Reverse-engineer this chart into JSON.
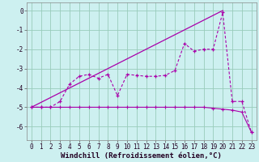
{
  "xlabel": "Windchill (Refroidissement éolien,°C)",
  "bg_color": "#cdf0f0",
  "grid_color": "#99ccbb",
  "line_color": "#aa00aa",
  "xlim": [
    -0.5,
    23.5
  ],
  "ylim": [
    -6.7,
    0.4
  ],
  "yticks": [
    0,
    -1,
    -2,
    -3,
    -4,
    -5,
    -6
  ],
  "xticks": [
    0,
    1,
    2,
    3,
    4,
    5,
    6,
    7,
    8,
    9,
    10,
    11,
    12,
    13,
    14,
    15,
    16,
    17,
    18,
    19,
    20,
    21,
    22,
    23
  ],
  "straight_line_x": [
    0,
    20
  ],
  "straight_line_y": [
    -5.0,
    0.0
  ],
  "flat_line_x": [
    0,
    1,
    2,
    3,
    4,
    5,
    6,
    7,
    8,
    9,
    10,
    11,
    12,
    13,
    14,
    15,
    16,
    17,
    18,
    19,
    20,
    21,
    22,
    23
  ],
  "flat_line_y": [
    -5.0,
    -5.0,
    -5.0,
    -5.0,
    -5.0,
    -5.0,
    -5.0,
    -5.0,
    -5.0,
    -5.0,
    -5.0,
    -5.0,
    -5.0,
    -5.0,
    -5.0,
    -5.0,
    -5.0,
    -5.0,
    -5.0,
    -5.05,
    -5.1,
    -5.15,
    -5.25,
    -6.3
  ],
  "jagged_x": [
    0,
    1,
    2,
    3,
    4,
    5,
    6,
    7,
    8,
    9,
    10,
    11,
    12,
    13,
    14,
    15,
    16,
    17,
    18,
    19,
    20,
    21,
    22,
    23
  ],
  "jagged_y": [
    -5.0,
    -5.0,
    -5.0,
    -4.7,
    -3.8,
    -3.4,
    -3.3,
    -3.5,
    -3.3,
    -4.4,
    -3.3,
    -3.35,
    -3.4,
    -3.4,
    -3.35,
    -3.1,
    -1.7,
    -2.1,
    -2.0,
    -2.0,
    -0.1,
    -4.7,
    -4.7,
    -6.3
  ],
  "xlabel_fontsize": 6.5,
  "tick_fontsize": 5.5,
  "ylabel_fontsize": 7
}
